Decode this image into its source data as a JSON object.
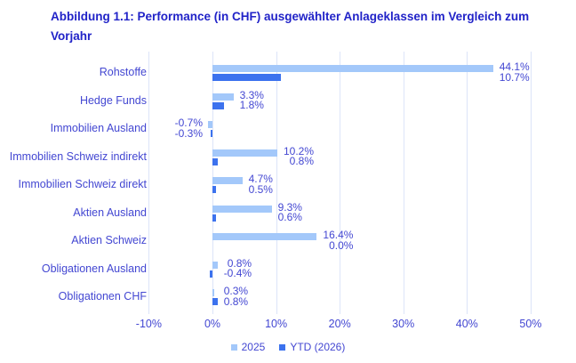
{
  "title": {
    "line1": "Abbildung 1.1: Performance (in CHF) ausgewählter Anlageklassen im Vergleich zum",
    "line2": "Vorjahr"
  },
  "chart_data": {
    "type": "bar",
    "orientation": "horizontal",
    "title": "Abbildung 1.1: Performance (in CHF) ausgewählter Anlageklassen im Vergleich zum Vorjahr",
    "categories": [
      "Rohstoffe",
      "Hedge Funds",
      "Immobilien Ausland",
      "Immobilien Schweiz indirekt",
      "Immobilien Schweiz direkt",
      "Aktien Ausland",
      "Aktien Schweiz",
      "Obligationen Ausland",
      "Obligationen CHF"
    ],
    "series": [
      {
        "name": "2025",
        "color": "#a3c8fa",
        "values": [
          44.1,
          3.3,
          -0.7,
          10.2,
          4.7,
          9.3,
          16.4,
          0.8,
          0.3
        ]
      },
      {
        "name": "YTD (2026)",
        "color": "#3c72ee",
        "values": [
          10.7,
          1.8,
          -0.3,
          0.8,
          0.5,
          0.6,
          0.0,
          -0.4,
          0.8
        ]
      }
    ],
    "value_labels": [
      [
        "44.1%",
        "10.7%"
      ],
      [
        "3.3%",
        "1.8%"
      ],
      [
        "-0.7%",
        "-0.3%"
      ],
      [
        "10.2%",
        "0.8%"
      ],
      [
        "4.7%",
        "0.5%"
      ],
      [
        "9.3%",
        "0.6%"
      ],
      [
        "16.4%",
        "0.0%"
      ],
      [
        "0.8%",
        "-0.4%"
      ],
      [
        "0.3%",
        "0.8%"
      ]
    ],
    "x_ticks": [
      {
        "label": "-10%",
        "value": -10
      },
      {
        "label": "0%",
        "value": 0
      },
      {
        "label": "10%",
        "value": 10
      },
      {
        "label": "20%",
        "value": 20
      },
      {
        "label": "30%",
        "value": 30
      },
      {
        "label": "40%",
        "value": 40
      },
      {
        "label": "50%",
        "value": 50
      }
    ],
    "xlim": [
      -10,
      50
    ],
    "grid": true,
    "legend_position": "bottom"
  },
  "colors": {
    "background": "#ffffff",
    "title_text": "#2123c8",
    "chart_text": "#4347d2",
    "series_2025": "#a3c8fa",
    "series_ytd_2026": "#3c72ee",
    "gridline": "#dce4f8"
  }
}
